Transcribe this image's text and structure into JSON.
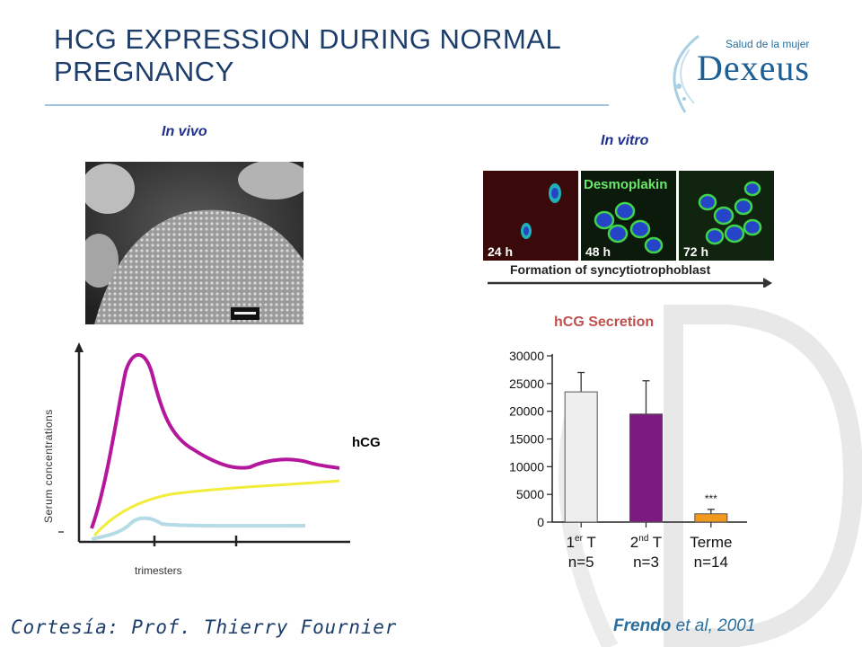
{
  "title": "HCG EXPRESSION DURING NORMAL PREGNANCY",
  "logo": {
    "tagline": "Salud de la mujer",
    "wordmark": "Dexeus"
  },
  "panels": {
    "in_vivo_label": "In vivo",
    "in_vitro_label": "In vitro",
    "micro_frames": [
      "24 h",
      "48 h",
      "72 h"
    ],
    "micro_stain": "Desmoplakin",
    "micro_arrow_text": "Formation of syncytiotrophoblast"
  },
  "left_chart": {
    "ylabel": "Serum concentrations",
    "xlabel": "trimesters",
    "legend_label": "hCG",
    "legend_glyph_1": "",
    "legend_glyph_2": "",
    "colors": {
      "hcg": "#b5179c",
      "yellow": "#f2ec3a",
      "blue": "#b5dbe6"
    }
  },
  "chart_data": {
    "type": "bar",
    "title": "hCG Secretion",
    "categories": [
      "1er T n=5",
      "2nd T n=3",
      "Terme n=14"
    ],
    "category_lines": [
      {
        "line1_main": "1",
        "line1_sup": "er",
        "line1_tail": " T",
        "line2": "n=5"
      },
      {
        "line1_main": "2",
        "line1_sup": "nd",
        "line1_tail": " T",
        "line2": "n=3"
      },
      {
        "line1_main": "Terme",
        "line1_sup": "",
        "line1_tail": "",
        "line2": "n=14"
      }
    ],
    "values": [
      23500,
      19500,
      1500
    ],
    "errors": [
      3500,
      6000,
      800
    ],
    "annotations": [
      "",
      "",
      "***"
    ],
    "ylim": [
      0,
      30000
    ],
    "yticks": [
      0,
      5000,
      10000,
      15000,
      20000,
      25000,
      30000
    ],
    "bar_colors": [
      "#eeeeee",
      "#7d1a7f",
      "#f29a1d"
    ]
  },
  "footer": {
    "courtesy": "Cortesía: Prof. Thierry  Fournier",
    "citation_name": "Frendo",
    "citation_rest": " et al, 2001"
  }
}
